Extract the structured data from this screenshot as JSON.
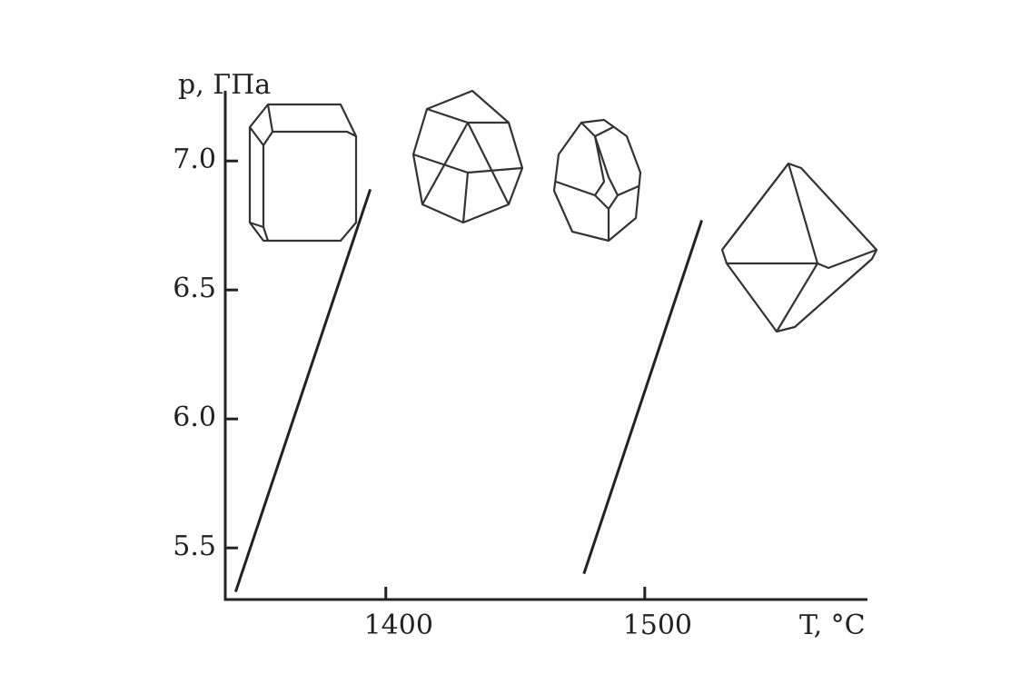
{
  "chart_data": {
    "type": "line",
    "xlabel": "T, °C",
    "ylabel": "p, ГПа",
    "xlim": [
      1338,
      1586
    ],
    "ylim": [
      5.3,
      7.3
    ],
    "xticks": [
      1400,
      1500
    ],
    "yticks": [
      {
        "value": 5.5,
        "label": "5.5"
      },
      {
        "value": 6,
        "label": "6.0"
      },
      {
        "value": 6.5,
        "label": "6.5"
      },
      {
        "value": 7,
        "label": "7.0"
      }
    ],
    "series": [
      {
        "color": "#222222",
        "x": [
          1342,
          1394
        ],
        "values": [
          5.33,
          6.89
        ]
      },
      {
        "color": "#222222",
        "x": [
          1476.5,
          1522
        ],
        "values": [
          5.4,
          6.77
        ]
      }
    ]
  }
}
